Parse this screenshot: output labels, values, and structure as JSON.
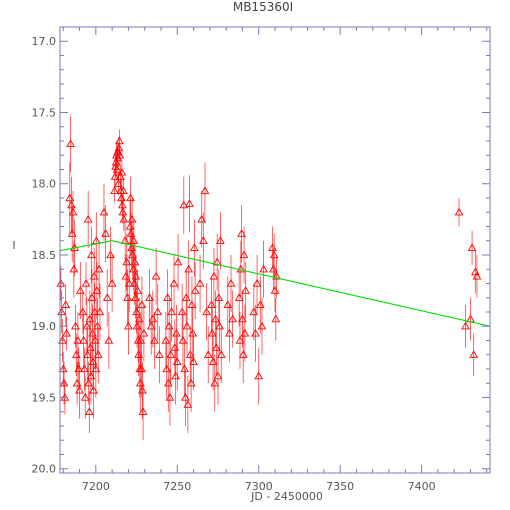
{
  "chart_data": {
    "type": "scatter",
    "title": "MB15360I",
    "xlabel": "JD - 2450000",
    "ylabel": "I",
    "xlim": [
      7178,
      7442
    ],
    "ylim": [
      20.03,
      16.9
    ],
    "y_inverted": true,
    "grid": false,
    "xticks": [
      7200,
      7250,
      7300,
      7350,
      7400
    ],
    "xtick_labels": [
      "7200",
      "7250",
      "7300",
      "7350",
      "7400"
    ],
    "yticks": [
      17.0,
      17.5,
      18.0,
      18.5,
      19.0,
      19.5,
      20.0
    ],
    "ytick_labels": [
      "17.0",
      "17.5",
      "18.0",
      "18.5",
      "19.0",
      "19.5",
      "20.0"
    ],
    "point_color": "#ff0000",
    "model_color": "#00dd00",
    "axis_color": "#7a7ab8",
    "model_line": {
      "x": [
        7178,
        7210,
        7442
      ],
      "y": [
        18.47,
        18.4,
        19.0
      ]
    },
    "points": [
      [
        7178.5,
        18.7,
        0.12
      ],
      [
        7179.0,
        18.9,
        0.15
      ],
      [
        7179.5,
        19.1,
        0.15
      ],
      [
        7180.0,
        19.3,
        0.12
      ],
      [
        7180.5,
        19.4,
        0.15
      ],
      [
        7181.0,
        19.5,
        0.12
      ],
      [
        7181.5,
        18.85,
        0.15
      ],
      [
        7182.0,
        19.05,
        0.12
      ],
      [
        7184.0,
        18.1,
        0.25
      ],
      [
        7184.5,
        17.72,
        0.2
      ],
      [
        7185.0,
        18.15,
        0.2
      ],
      [
        7185.5,
        18.35,
        0.2
      ],
      [
        7186.0,
        18.2,
        0.15
      ],
      [
        7186.5,
        18.6,
        0.2
      ],
      [
        7187.0,
        18.45,
        0.2
      ],
      [
        7187.5,
        19.0,
        0.15
      ],
      [
        7188.0,
        19.2,
        0.15
      ],
      [
        7188.5,
        19.4,
        0.15
      ],
      [
        7189.0,
        19.1,
        0.2
      ],
      [
        7189.5,
        19.3,
        0.15
      ],
      [
        7190.0,
        19.45,
        0.2
      ],
      [
        7190.5,
        18.75,
        0.2
      ],
      [
        7192.0,
        18.9,
        0.15
      ],
      [
        7192.5,
        19.1,
        0.2
      ],
      [
        7193.0,
        19.3,
        0.15
      ],
      [
        7193.5,
        19.5,
        0.15
      ],
      [
        7194.0,
        18.7,
        0.15
      ],
      [
        7194.5,
        19.0,
        0.2
      ],
      [
        7195.0,
        19.2,
        0.2
      ],
      [
        7195.3,
        18.25,
        0.2
      ],
      [
        7195.6,
        19.4,
        0.15
      ],
      [
        7196.0,
        19.6,
        0.15
      ],
      [
        7196.3,
        18.95,
        0.2
      ],
      [
        7196.6,
        19.15,
        0.2
      ],
      [
        7197.0,
        19.35,
        0.2
      ],
      [
        7197.3,
        18.5,
        0.2
      ],
      [
        7197.6,
        18.8,
        0.2
      ],
      [
        7198.0,
        19.05,
        0.2
      ],
      [
        7198.3,
        19.25,
        0.2
      ],
      [
        7198.6,
        19.45,
        0.2
      ],
      [
        7199.0,
        18.65,
        0.2
      ],
      [
        7199.3,
        18.9,
        0.2
      ],
      [
        7199.6,
        19.1,
        0.2
      ],
      [
        7200.0,
        19.3,
        0.2
      ],
      [
        7200.3,
        18.4,
        0.2
      ],
      [
        7200.6,
        18.75,
        0.2
      ],
      [
        7201.0,
        19.0,
        0.2
      ],
      [
        7201.5,
        19.2,
        0.2
      ],
      [
        7202.0,
        18.6,
        0.2
      ],
      [
        7202.5,
        18.9,
        0.2
      ],
      [
        7205.0,
        18.2,
        0.2
      ],
      [
        7206.0,
        18.35,
        0.2
      ],
      [
        7207.0,
        18.8,
        0.2
      ],
      [
        7208.0,
        19.1,
        0.2
      ],
      [
        7209.0,
        18.5,
        0.2
      ],
      [
        7210.0,
        18.7,
        0.2
      ],
      [
        7211.5,
        18.05,
        0.08
      ],
      [
        7211.8,
        17.95,
        0.08
      ],
      [
        7212.1,
        17.88,
        0.08
      ],
      [
        7212.4,
        17.85,
        0.08
      ],
      [
        7212.7,
        17.8,
        0.08
      ],
      [
        7213.0,
        17.9,
        0.08
      ],
      [
        7213.3,
        17.78,
        0.08
      ],
      [
        7213.6,
        17.82,
        0.08
      ],
      [
        7213.9,
        18.0,
        0.08
      ],
      [
        7214.2,
        17.75,
        0.08
      ],
      [
        7214.5,
        17.7,
        0.08
      ],
      [
        7214.8,
        17.8,
        0.08
      ],
      [
        7215.1,
        17.95,
        0.08
      ],
      [
        7215.4,
        18.05,
        0.08
      ],
      [
        7215.7,
        18.1,
        0.08
      ],
      [
        7216.0,
        17.92,
        0.08
      ],
      [
        7216.3,
        18.15,
        0.08
      ],
      [
        7216.6,
        18.2,
        0.08
      ],
      [
        7216.9,
        18.05,
        0.08
      ],
      [
        7217.2,
        18.25,
        0.08
      ],
      [
        7218.0,
        18.4,
        0.15
      ],
      [
        7218.5,
        18.65,
        0.15
      ],
      [
        7219.0,
        18.55,
        0.2
      ],
      [
        7219.5,
        18.8,
        0.2
      ],
      [
        7220.0,
        19.0,
        0.2
      ],
      [
        7220.5,
        18.7,
        0.2
      ],
      [
        7221.0,
        18.3,
        0.2
      ],
      [
        7221.3,
        18.1,
        0.15
      ],
      [
        7221.6,
        18.35,
        0.15
      ],
      [
        7222.0,
        18.45,
        0.15
      ],
      [
        7222.3,
        18.25,
        0.15
      ],
      [
        7222.6,
        18.5,
        0.15
      ],
      [
        7223.0,
        18.6,
        0.15
      ],
      [
        7223.3,
        18.4,
        0.15
      ],
      [
        7223.6,
        18.7,
        0.15
      ],
      [
        7224.0,
        18.55,
        0.15
      ],
      [
        7224.3,
        18.8,
        0.15
      ],
      [
        7224.6,
        18.65,
        0.15
      ],
      [
        7225.0,
        18.9,
        0.15
      ],
      [
        7225.3,
        19.0,
        0.15
      ],
      [
        7225.6,
        18.75,
        0.15
      ],
      [
        7226.0,
        19.1,
        0.15
      ],
      [
        7226.3,
        19.2,
        0.15
      ],
      [
        7226.6,
        18.95,
        0.15
      ],
      [
        7227.0,
        19.3,
        0.2
      ],
      [
        7227.3,
        19.4,
        0.2
      ],
      [
        7227.6,
        19.1,
        0.2
      ],
      [
        7228.0,
        19.3,
        0.2
      ],
      [
        7228.3,
        18.85,
        0.2
      ],
      [
        7228.6,
        19.45,
        0.2
      ],
      [
        7229.0,
        19.6,
        0.2
      ],
      [
        7229.5,
        19.05,
        0.2
      ],
      [
        7233.0,
        18.8,
        0.2
      ],
      [
        7234.0,
        19.0,
        0.2
      ],
      [
        7235.0,
        18.95,
        0.2
      ],
      [
        7236.0,
        19.1,
        0.2
      ],
      [
        7237.0,
        18.65,
        0.2
      ],
      [
        7238.0,
        18.9,
        0.2
      ],
      [
        7239.0,
        19.2,
        0.2
      ],
      [
        7243.0,
        19.1,
        0.2
      ],
      [
        7243.5,
        19.3,
        0.2
      ],
      [
        7244.0,
        18.8,
        0.2
      ],
      [
        7244.5,
        19.4,
        0.2
      ],
      [
        7245.0,
        19.0,
        0.2
      ],
      [
        7245.5,
        19.5,
        0.2
      ],
      [
        7246.0,
        19.2,
        0.2
      ],
      [
        7246.5,
        18.9,
        0.2
      ],
      [
        7248.0,
        18.7,
        0.2
      ],
      [
        7248.5,
        19.15,
        0.2
      ],
      [
        7249.0,
        19.35,
        0.2
      ],
      [
        7249.5,
        19.05,
        0.2
      ],
      [
        7250.0,
        19.25,
        0.2
      ],
      [
        7250.5,
        18.55,
        0.2
      ],
      [
        7253.0,
        18.9,
        0.2
      ],
      [
        7253.5,
        19.1,
        0.2
      ],
      [
        7254.0,
        18.15,
        0.2
      ],
      [
        7254.5,
        19.3,
        0.2
      ],
      [
        7255.0,
        19.5,
        0.2
      ],
      [
        7255.5,
        18.8,
        0.2
      ],
      [
        7256.0,
        19.0,
        0.2
      ],
      [
        7256.5,
        19.55,
        0.2
      ],
      [
        7257.0,
        18.6,
        0.2
      ],
      [
        7257.5,
        18.14,
        0.2
      ],
      [
        7258.0,
        19.2,
        0.2
      ],
      [
        7258.5,
        19.4,
        0.2
      ],
      [
        7259.0,
        18.85,
        0.2
      ],
      [
        7259.5,
        19.05,
        0.2
      ],
      [
        7260.0,
        19.25,
        0.2
      ],
      [
        7260.5,
        18.45,
        0.2
      ],
      [
        7261.0,
        18.75,
        0.2
      ],
      [
        7264.0,
        18.7,
        0.2
      ],
      [
        7265.0,
        18.25,
        0.2
      ],
      [
        7266.0,
        18.4,
        0.2
      ],
      [
        7267.0,
        18.05,
        0.2
      ],
      [
        7268.0,
        18.9,
        0.2
      ],
      [
        7269.0,
        19.2,
        0.2
      ],
      [
        7271.0,
        18.85,
        0.2
      ],
      [
        7271.5,
        19.05,
        0.2
      ],
      [
        7272.0,
        19.25,
        0.2
      ],
      [
        7272.5,
        18.65,
        0.2
      ],
      [
        7273.0,
        19.4,
        0.2
      ],
      [
        7273.5,
        18.95,
        0.2
      ],
      [
        7274.0,
        19.15,
        0.2
      ],
      [
        7274.5,
        18.55,
        0.2
      ],
      [
        7275.0,
        19.35,
        0.2
      ],
      [
        7275.5,
        18.8,
        0.2
      ],
      [
        7276.0,
        19.0,
        0.2
      ],
      [
        7276.5,
        18.4,
        0.2
      ],
      [
        7277.0,
        19.2,
        0.2
      ],
      [
        7281.0,
        18.85,
        0.2
      ],
      [
        7282.0,
        19.05,
        0.2
      ],
      [
        7283.0,
        18.7,
        0.2
      ],
      [
        7284.0,
        18.95,
        0.2
      ],
      [
        7288.0,
        18.8,
        0.2
      ],
      [
        7288.5,
        19.1,
        0.2
      ],
      [
        7289.0,
        18.6,
        0.2
      ],
      [
        7289.5,
        18.35,
        0.2
      ],
      [
        7290.0,
        18.95,
        0.2
      ],
      [
        7290.5,
        19.2,
        0.2
      ],
      [
        7291.0,
        18.5,
        0.2
      ],
      [
        7291.5,
        19.05,
        0.2
      ],
      [
        7292.0,
        18.75,
        0.2
      ],
      [
        7297.0,
        18.9,
        0.2
      ],
      [
        7298.0,
        19.05,
        0.2
      ],
      [
        7299.0,
        18.7,
        0.2
      ],
      [
        7300.0,
        19.35,
        0.2
      ],
      [
        7301.0,
        18.85,
        0.2
      ],
      [
        7302.0,
        19.0,
        0.2
      ],
      [
        7303.0,
        18.6,
        0.2
      ],
      [
        7308.5,
        18.45,
        0.15
      ],
      [
        7309.0,
        18.6,
        0.15
      ],
      [
        7309.5,
        18.5,
        0.15
      ],
      [
        7310.0,
        18.75,
        0.15
      ],
      [
        7310.5,
        18.95,
        0.15
      ],
      [
        7311.0,
        18.65,
        0.15
      ],
      [
        7423.0,
        18.2,
        0.1
      ],
      [
        7427.0,
        19.0,
        0.15
      ],
      [
        7430.0,
        18.95,
        0.15
      ],
      [
        7431.0,
        18.45,
        0.12
      ],
      [
        7432.0,
        19.2,
        0.15
      ],
      [
        7433.0,
        18.62,
        0.15
      ],
      [
        7434.0,
        18.65,
        0.15
      ]
    ]
  }
}
